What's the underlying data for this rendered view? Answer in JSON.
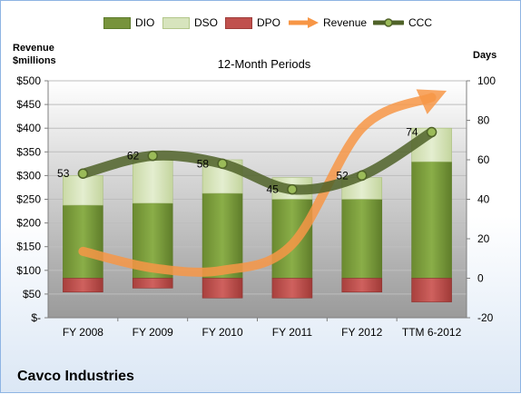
{
  "chart_data": {
    "type": "bar",
    "title": "12-Month Periods",
    "categories": [
      "FY 2008",
      "FY 2009",
      "FY 2010",
      "FY 2011",
      "FY 2012",
      "TTM 6-2012"
    ],
    "left_axis": {
      "title_line1": "Revenue",
      "title_line2": "$millions",
      "range": [
        0,
        500
      ],
      "tick_labels": [
        "$-",
        "$50",
        "$100",
        "$150",
        "$200",
        "$250",
        "$300",
        "$350",
        "$400",
        "$450",
        "$500"
      ]
    },
    "right_axis": {
      "title": "Days",
      "range": [
        -20,
        100
      ],
      "tick_labels": [
        "-20",
        "0",
        "20",
        "40",
        "60",
        "80",
        "100"
      ]
    },
    "series": [
      {
        "name": "DIO",
        "axis": "days",
        "color": "#77933c",
        "values": [
          37,
          38,
          43,
          40,
          40,
          59
        ]
      },
      {
        "name": "DSO",
        "axis": "days",
        "color": "#d7e4bd",
        "values": [
          15,
          22,
          17,
          11,
          11,
          17
        ]
      },
      {
        "name": "DPO",
        "axis": "days",
        "color": "#c0504d",
        "values": [
          -7,
          -5,
          -10,
          -10,
          -7,
          -12
        ]
      },
      {
        "name": "Revenue",
        "axis": "revenue",
        "color": "#f79646",
        "values": [
          140,
          105,
          100,
          155,
          400,
          465
        ]
      },
      {
        "name": "CCC",
        "axis": "days",
        "color": "#4f6228",
        "values": [
          53,
          62,
          58,
          45,
          52,
          74
        ],
        "labels": [
          "53",
          "62",
          "58",
          "45",
          "52",
          "74"
        ]
      }
    ],
    "grid": true,
    "legend_position": "top"
  },
  "company": "Cavco Industries",
  "legend": [
    {
      "name": "DIO",
      "kind": "bar",
      "color": "#77933c"
    },
    {
      "name": "DSO",
      "kind": "bar",
      "color": "#d7e4bd"
    },
    {
      "name": "DPO",
      "kind": "bar",
      "color": "#c0504d"
    },
    {
      "name": "Revenue",
      "kind": "arrow",
      "color": "#f79646"
    },
    {
      "name": "CCC",
      "kind": "line",
      "color": "#4f6228"
    }
  ]
}
